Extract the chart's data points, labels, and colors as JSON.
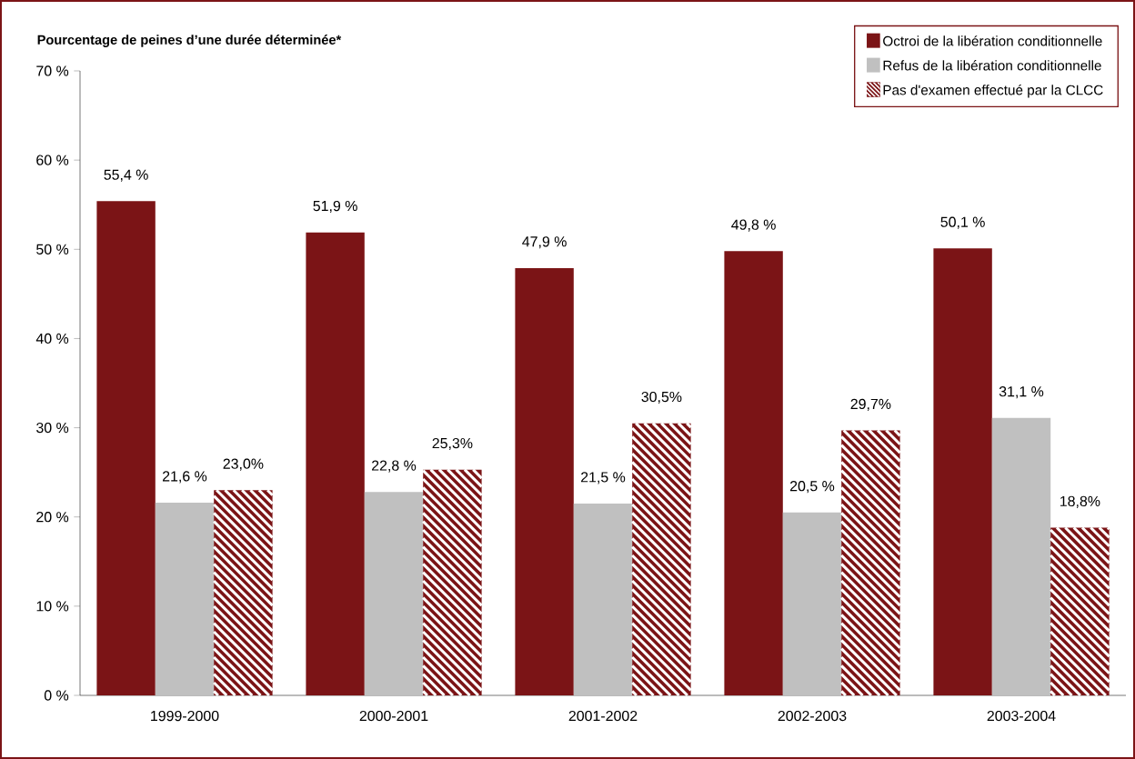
{
  "chart_data": {
    "type": "bar",
    "ylabel": "Pourcentage de peines d’une durée déterminée*",
    "categories": [
      "1999-2000",
      "2000-2001",
      "2001-2002",
      "2002-2003",
      "2003-2004"
    ],
    "series": [
      {
        "name": "Octroi de la libération conditionnelle",
        "color": "#7b1416",
        "values": [
          55.4,
          51.9,
          47.9,
          49.8,
          50.1
        ],
        "value_labels": [
          "55,4 %",
          "51,9 %",
          "47,9 %",
          "49,8 %",
          "50,1 %"
        ]
      },
      {
        "name": "Refus de la libération conditionnelle",
        "color": "#c0c0c0",
        "values": [
          21.6,
          22.8,
          21.5,
          20.5,
          31.1
        ],
        "value_labels": [
          "21,6 %",
          "22,8 %",
          "21,5 %",
          "20,5 %",
          "31,1 %"
        ]
      },
      {
        "name": "Pas d'examen effectué par la CLCC",
        "color": "#7b1416",
        "values": [
          23.0,
          25.3,
          30.5,
          29.7,
          18.8
        ],
        "value_labels": [
          "23,0%",
          "25,3%",
          "30,5%",
          "29,7%",
          "18,8%"
        ]
      }
    ],
    "ylim": [
      0,
      70
    ],
    "yticks": [
      {
        "value": 0,
        "label": "0 %"
      },
      {
        "value": 10,
        "label": "10 %"
      },
      {
        "value": 20,
        "label": "20 %"
      },
      {
        "value": 30,
        "label": "30 %"
      },
      {
        "value": 40,
        "label": "40 %"
      },
      {
        "value": 50,
        "label": "50 %"
      },
      {
        "value": 60,
        "label": "60 %"
      },
      {
        "value": 70,
        "label": "70 %"
      }
    ],
    "grid": false,
    "legend": "top right"
  }
}
